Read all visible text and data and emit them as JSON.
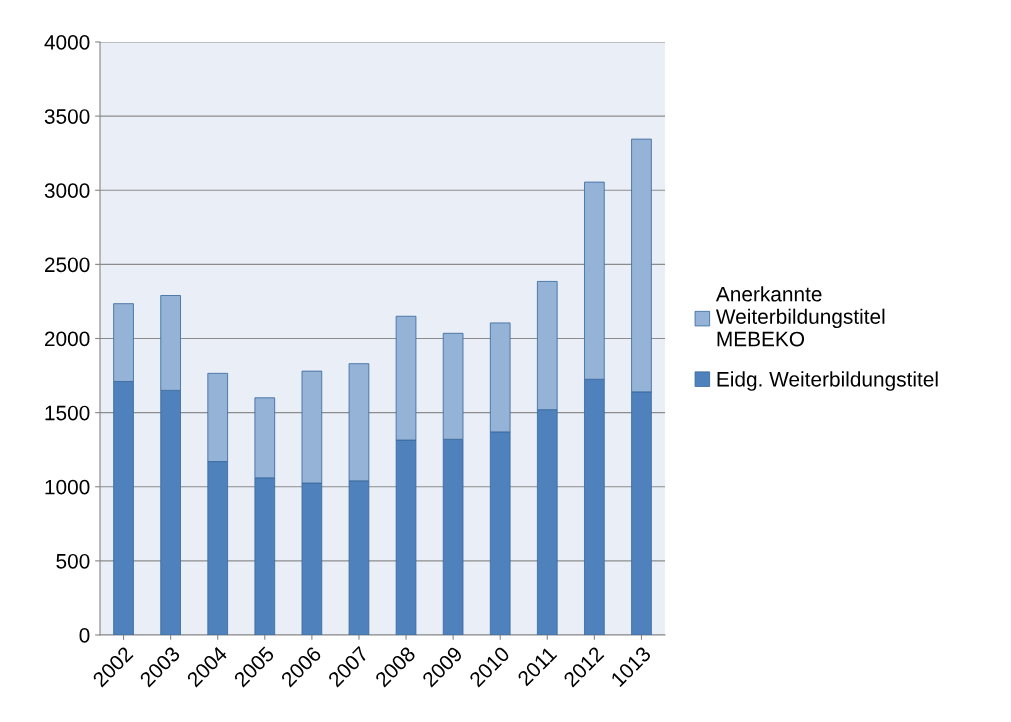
{
  "chart_data": {
    "type": "bar",
    "stacked": true,
    "categories": [
      "2002",
      "2003",
      "2004",
      "2005",
      "2006",
      "2007",
      "2008",
      "2009",
      "2010",
      "2011",
      "2012",
      "1013"
    ],
    "series": [
      {
        "name": "Eidg. Weiterbildungstitel",
        "color": "#4f81bd",
        "values": [
          1710,
          1650,
          1170,
          1060,
          1025,
          1040,
          1315,
          1320,
          1370,
          1520,
          1725,
          1640
        ]
      },
      {
        "name": "Anerkannte\nWeiterbildungstitel\nMEBEKO",
        "color": "#95b3d7",
        "values": [
          525,
          640,
          595,
          540,
          755,
          790,
          835,
          715,
          735,
          865,
          1330,
          1705
        ]
      }
    ],
    "ylim": [
      0,
      4000
    ],
    "yticks": [
      0,
      500,
      1000,
      1500,
      2000,
      2500,
      3000,
      3500,
      4000
    ],
    "grid": "y",
    "legend": "right"
  }
}
